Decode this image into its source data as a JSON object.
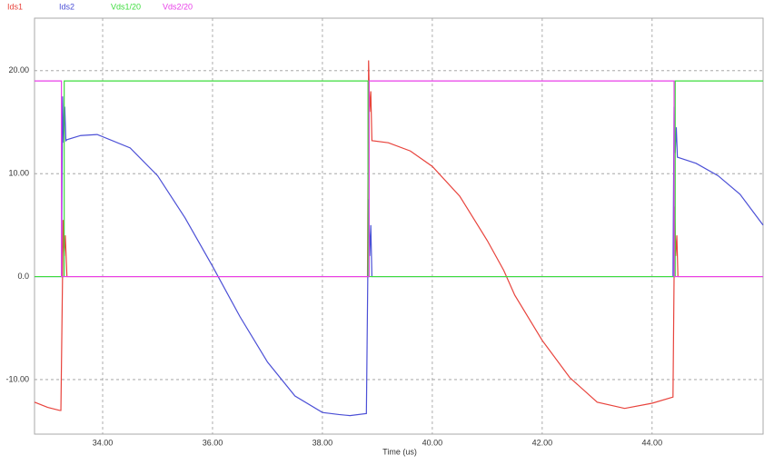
{
  "chart_data": {
    "type": "line",
    "xlabel": "Time (us)",
    "xlim": [
      32.76,
      46.02
    ],
    "ylim": [
      -15.3,
      25.1
    ],
    "xticks": [
      {
        "value": 34,
        "label": "34.00"
      },
      {
        "value": 36,
        "label": "36.00"
      },
      {
        "value": 38,
        "label": "38.00"
      },
      {
        "value": 40,
        "label": "40.00"
      },
      {
        "value": 42,
        "label": "42.00"
      },
      {
        "value": 44,
        "label": "44.00"
      }
    ],
    "yticks": [
      {
        "value": -10,
        "label": "-10.00"
      },
      {
        "value": 0,
        "label": "0.0"
      },
      {
        "value": 10,
        "label": "10.00"
      },
      {
        "value": 20,
        "label": "20.00"
      }
    ],
    "grid": true,
    "series": [
      {
        "name": "Ids1",
        "color": "#e8433c",
        "x": [
          32.76,
          33.0,
          33.22,
          33.24,
          33.27,
          33.28,
          33.3,
          33.32,
          33.35,
          38.82,
          38.84,
          38.86,
          38.88,
          38.9,
          39.2,
          39.6,
          40.0,
          40.5,
          41.0,
          41.3,
          41.5,
          42.0,
          42.5,
          43.0,
          43.5,
          44.0,
          44.38,
          44.4,
          44.41,
          44.43,
          44.45,
          44.47,
          46.02
        ],
        "values": [
          -12.2,
          -12.7,
          -13.0,
          -13.0,
          0,
          5.5,
          2,
          4,
          0,
          0,
          21,
          16,
          18,
          13.2,
          13.0,
          12.2,
          10.7,
          7.8,
          3.5,
          0.6,
          -1.8,
          -6.2,
          -9.8,
          -12.2,
          -12.8,
          -12.3,
          -11.7,
          0,
          6.8,
          2,
          4,
          0,
          0
        ]
      },
      {
        "name": "Ids2",
        "color": "#4b4fd6",
        "x": [
          32.76,
          33.25,
          33.27,
          33.29,
          33.31,
          33.33,
          33.35,
          33.6,
          33.9,
          34.5,
          35.0,
          35.5,
          36.0,
          36.5,
          37.0,
          37.5,
          38.0,
          38.3,
          38.5,
          38.8,
          38.84,
          38.86,
          38.88,
          38.9,
          44.38,
          44.4,
          44.42,
          44.44,
          44.46,
          44.8,
          45.2,
          45.6,
          46.02
        ],
        "values": [
          0,
          0,
          17.5,
          13,
          16.5,
          13.2,
          13.3,
          13.7,
          13.8,
          12.5,
          9.8,
          5.7,
          1.0,
          -3.9,
          -8.3,
          -11.6,
          -13.2,
          -13.4,
          -13.5,
          -13.3,
          7.5,
          2,
          5,
          0,
          0,
          16.5,
          12,
          14.5,
          11.6,
          11.0,
          9.8,
          8.0,
          5.0
        ]
      },
      {
        "name": "Vds1/20",
        "color": "#3ddc3d",
        "x": [
          32.76,
          33.3,
          33.3,
          38.83,
          38.83,
          44.42,
          44.42,
          46.02
        ],
        "values": [
          0,
          0,
          19,
          19,
          0,
          0,
          19,
          19
        ]
      },
      {
        "name": "Vds2/20",
        "color": "#e83ee8",
        "x": [
          32.76,
          33.25,
          33.25,
          38.85,
          38.85,
          44.4,
          44.4,
          46.02
        ],
        "values": [
          19,
          19,
          0,
          0,
          19,
          19,
          0,
          0
        ]
      }
    ]
  }
}
